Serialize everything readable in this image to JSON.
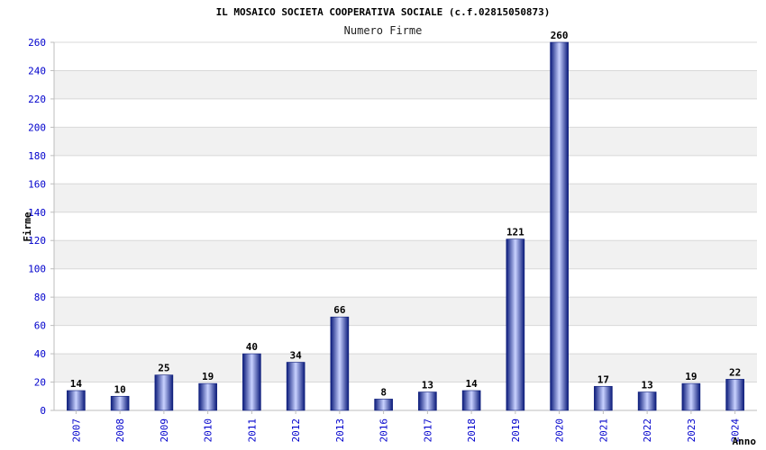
{
  "chart_data": {
    "type": "bar",
    "title": "IL MOSAICO SOCIETA COOPERATIVA SOCIALE (c.f.02815050873)",
    "subtitle": "Numero Firme",
    "ylabel": "Firme",
    "xlabel": "Anno",
    "ylim": [
      0,
      260
    ],
    "yticks": [
      "0",
      "20",
      "40",
      "60",
      "80",
      "100",
      "120",
      "140",
      "160",
      "180",
      "200",
      "220",
      "240",
      "260"
    ],
    "categories": [
      "2007",
      "2008",
      "2009",
      "2010",
      "2011",
      "2012",
      "2013",
      "2016",
      "2017",
      "2018",
      "2019",
      "2020",
      "2021",
      "2022",
      "2023",
      "2024"
    ],
    "values": [
      14,
      10,
      25,
      19,
      40,
      34,
      66,
      8,
      13,
      14,
      121,
      260,
      17,
      13,
      19,
      22
    ],
    "value_labels": [
      "14",
      "10",
      "25",
      "19",
      "40",
      "34",
      "66",
      "8",
      "13",
      "14",
      "121",
      "260",
      "17",
      "13",
      "19",
      "22"
    ],
    "grid": true,
    "legend": "none",
    "colors": {
      "bar_dark": "#0a1a7a",
      "bar_light": "#c9d2ff",
      "tick_label": "#0000cc",
      "text": "#000000",
      "band": "#f1f1f1",
      "grid": "#d8d8d8"
    }
  }
}
